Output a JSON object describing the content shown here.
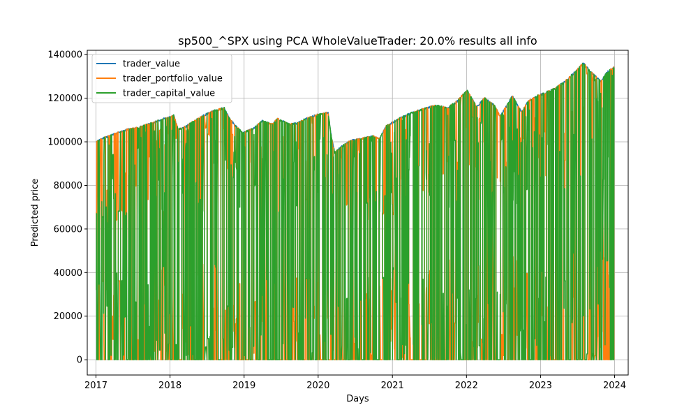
{
  "chart_data": {
    "type": "line",
    "title": "sp500_^SPX using PCA WholeValueTrader: 20.0% results all info",
    "xlabel": "Days",
    "ylabel": "Predicted price",
    "xlim": [
      "2016-11-19",
      "2024-03-08"
    ],
    "ylim": [
      -7000,
      142000
    ],
    "x_ticks": [
      {
        "label": "2017",
        "date": "2017-01-01"
      },
      {
        "label": "2018",
        "date": "2018-01-01"
      },
      {
        "label": "2019",
        "date": "2019-01-01"
      },
      {
        "label": "2020",
        "date": "2020-01-01"
      },
      {
        "label": "2021",
        "date": "2021-01-01"
      },
      {
        "label": "2022",
        "date": "2022-01-01"
      },
      {
        "label": "2023",
        "date": "2023-01-01"
      },
      {
        "label": "2024",
        "date": "2024-01-01"
      }
    ],
    "y_ticks": [
      {
        "label": "0",
        "value": 0
      },
      {
        "label": "20000",
        "value": 20000
      },
      {
        "label": "40000",
        "value": 40000
      },
      {
        "label": "60000",
        "value": 60000
      },
      {
        "label": "80000",
        "value": 80000
      },
      {
        "label": "100000",
        "value": 100000
      },
      {
        "label": "120000",
        "value": 120000
      },
      {
        "label": "140000",
        "value": 140000
      }
    ],
    "grid": true,
    "legend_position": "upper-left",
    "series": [
      {
        "name": "trader_value",
        "color": "#1f77b4",
        "points": [
          [
            "2017-01-03",
            100000
          ],
          [
            "2017-02-15",
            102000
          ],
          [
            "2017-04-01",
            103500
          ],
          [
            "2017-06-01",
            105500
          ],
          [
            "2017-08-01",
            106500
          ],
          [
            "2017-10-01",
            108500
          ],
          [
            "2017-12-01",
            110500
          ],
          [
            "2018-01-20",
            112000
          ],
          [
            "2018-02-10",
            105500
          ],
          [
            "2018-03-20",
            107000
          ],
          [
            "2018-05-01",
            109500
          ],
          [
            "2018-06-15",
            112000
          ],
          [
            "2018-08-01",
            114000
          ],
          [
            "2018-09-25",
            115500
          ],
          [
            "2018-10-25",
            110000
          ],
          [
            "2018-12-24",
            104000
          ],
          [
            "2019-02-15",
            106000
          ],
          [
            "2019-04-01",
            109500
          ],
          [
            "2019-05-20",
            108000
          ],
          [
            "2019-06-15",
            110500
          ],
          [
            "2019-08-10",
            108000
          ],
          [
            "2019-09-20",
            108500
          ],
          [
            "2019-11-01",
            110500
          ],
          [
            "2019-12-31",
            112500
          ],
          [
            "2020-02-19",
            113500
          ],
          [
            "2020-03-05",
            103000
          ],
          [
            "2020-03-23",
            95000
          ],
          [
            "2020-04-20",
            97500
          ],
          [
            "2020-06-10",
            100500
          ],
          [
            "2020-08-01",
            101500
          ],
          [
            "2020-09-30",
            102500
          ],
          [
            "2020-10-30",
            101500
          ],
          [
            "2020-12-01",
            107000
          ],
          [
            "2021-02-01",
            110500
          ],
          [
            "2021-04-01",
            113000
          ],
          [
            "2021-06-01",
            115000
          ],
          [
            "2021-08-01",
            116500
          ],
          [
            "2021-10-01",
            115500
          ],
          [
            "2021-11-15",
            118500
          ],
          [
            "2022-01-04",
            123500
          ],
          [
            "2022-02-20",
            116000
          ],
          [
            "2022-04-01",
            120000
          ],
          [
            "2022-05-20",
            116500
          ],
          [
            "2022-06-16",
            111500
          ],
          [
            "2022-08-15",
            121000
          ],
          [
            "2022-09-30",
            113500
          ],
          [
            "2022-11-01",
            118500
          ],
          [
            "2022-12-15",
            121000
          ],
          [
            "2023-01-15",
            122000
          ],
          [
            "2023-03-15",
            124500
          ],
          [
            "2023-05-01",
            127500
          ],
          [
            "2023-06-15",
            131500
          ],
          [
            "2023-07-31",
            136000
          ],
          [
            "2023-09-01",
            132500
          ],
          [
            "2023-10-27",
            127500
          ],
          [
            "2023-11-20",
            131500
          ],
          [
            "2023-12-29",
            134000
          ]
        ]
      },
      {
        "name": "trader_portfolio_value",
        "color": "#ff7f0e",
        "points": []
      },
      {
        "name": "trader_capital_value",
        "color": "#2ca02c",
        "points": []
      }
    ]
  }
}
